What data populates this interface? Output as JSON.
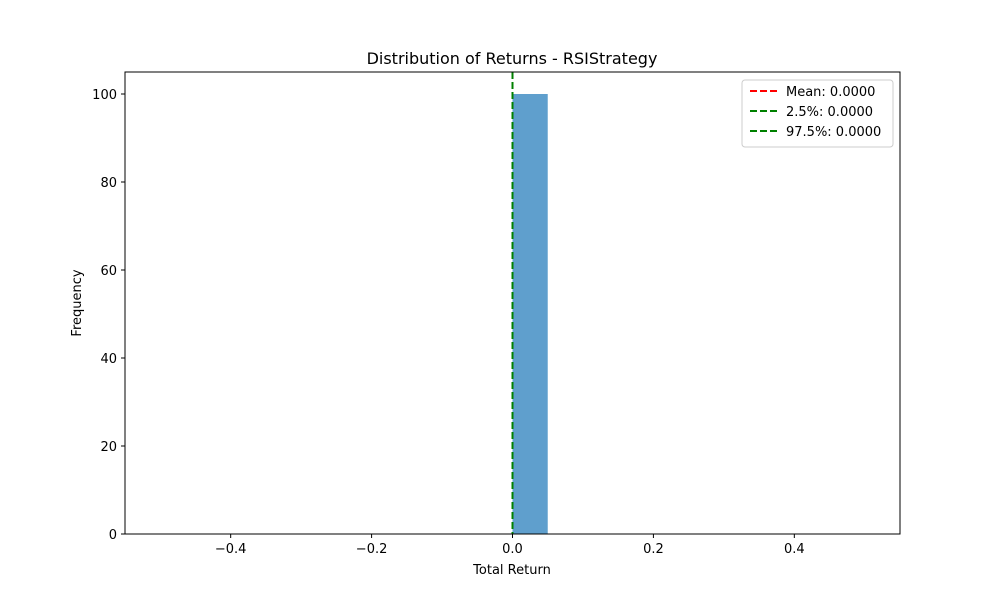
{
  "chart_data": {
    "type": "bar",
    "title": "Distribution of Returns - RSIStrategy",
    "xlabel": "Total Return",
    "ylabel": "Frequency",
    "xlim": [
      -0.55,
      0.55
    ],
    "ylim": [
      0,
      105
    ],
    "x_ticks": [
      -0.4,
      -0.2,
      0.0,
      0.2,
      0.4
    ],
    "x_tick_labels": [
      "−0.4",
      "−0.2",
      "0.0",
      "0.2",
      "0.4"
    ],
    "y_ticks": [
      0,
      20,
      40,
      60,
      80,
      100
    ],
    "y_tick_labels": [
      "0",
      "20",
      "40",
      "60",
      "80",
      "100"
    ],
    "grid": false,
    "bins": [
      {
        "x0": 0.0,
        "x1": 0.05,
        "count": 100
      }
    ],
    "bar_color": "#5f9fcd",
    "reference_lines": [
      {
        "label": "Mean: 0.0000",
        "x": 0.0,
        "color": "#ff0000",
        "style": "dashed"
      },
      {
        "label": "2.5%: 0.0000",
        "x": 0.0,
        "color": "#008000",
        "style": "dashed"
      },
      {
        "label": "97.5%: 0.0000",
        "x": 0.0,
        "color": "#008000",
        "style": "dashed"
      }
    ],
    "legend_position": "top-right"
  }
}
